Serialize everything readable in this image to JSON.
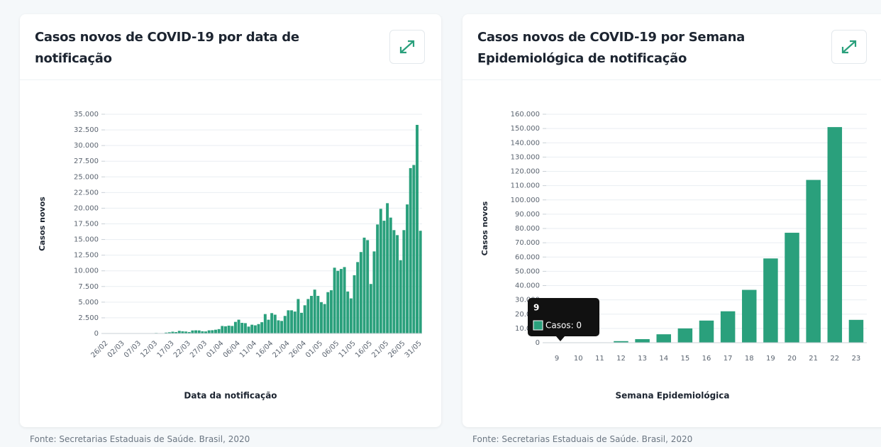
{
  "chart_data": [
    {
      "type": "bar",
      "title": "Casos novos de COVID-19 por data de notificação",
      "xlabel": "Data da notificação",
      "ylabel": "Casos novos",
      "source": "Fonte: Secretarias Estaduais de Saúde. Brasil, 2020",
      "color": "#2aa07c",
      "grid": true,
      "categories": [
        "26/02",
        null,
        null,
        null,
        null,
        "02/03",
        null,
        null,
        null,
        null,
        "07/03",
        null,
        null,
        null,
        null,
        "12/03",
        null,
        null,
        null,
        null,
        "17/03",
        null,
        null,
        null,
        null,
        "22/03",
        null,
        null,
        null,
        null,
        "27/03",
        null,
        null,
        null,
        null,
        "01/04",
        null,
        null,
        null,
        null,
        "06/04",
        null,
        null,
        null,
        null,
        "11/04",
        null,
        null,
        null,
        null,
        "16/04",
        null,
        null,
        null,
        null,
        "21/04",
        null,
        null,
        null,
        null,
        "26/04",
        null,
        null,
        null,
        null,
        "01/05",
        null,
        null,
        null,
        null,
        "06/05",
        null,
        null,
        null,
        null,
        "11/05",
        null,
        null,
        null,
        null,
        "16/05",
        null,
        null,
        null,
        null,
        "21/05",
        null,
        null,
        null,
        null,
        "26/05",
        null,
        null,
        null,
        null,
        "31/05"
      ],
      "values": [
        1,
        0,
        0,
        1,
        0,
        1,
        0,
        0,
        5,
        4,
        6,
        6,
        25,
        21,
        23,
        79,
        34,
        57,
        137,
        193,
        283,
        224,
        418,
        345,
        310,
        232,
        482,
        502,
        487,
        352,
        323,
        500,
        520,
        600,
        700,
        1200,
        1150,
        1250,
        1200,
        1850,
        2200,
        1700,
        1650,
        1100,
        1400,
        1300,
        1500,
        1800,
        3100,
        2200,
        3250,
        3000,
        2100,
        2000,
        2800,
        3700,
        3700,
        3500,
        5500,
        3300,
        4500,
        5500,
        6000,
        7000,
        6000,
        5000,
        4700,
        6600,
        6900,
        10500,
        10000,
        10300,
        10600,
        6700,
        5600,
        9300,
        11400,
        13000,
        15300,
        14900,
        7900,
        13100,
        17400,
        19900,
        18000,
        20800,
        18500,
        16500,
        15700,
        11700,
        16500,
        20600,
        26400,
        26900,
        33300,
        16400
      ],
      "ylim": [
        0,
        35000
      ],
      "yticks": [
        0,
        {
          "value": 2500,
          "label": "2.500"
        },
        {
          "value": 5000,
          "label": "5.000"
        },
        {
          "value": 7500,
          "label": "7.500"
        },
        {
          "value": 10000,
          "label": "10.000"
        },
        {
          "value": 12500,
          "label": "12.500"
        },
        {
          "value": 15000,
          "label": "15.000"
        },
        {
          "value": 17500,
          "label": "17.500"
        },
        {
          "value": 20000,
          "label": "20.000"
        },
        {
          "value": 22500,
          "label": "22.500"
        },
        {
          "value": 25000,
          "label": "25.000"
        },
        {
          "value": 27500,
          "label": "27.500"
        },
        {
          "value": 30000,
          "label": "30.000"
        },
        {
          "value": 32500,
          "label": "32.500"
        },
        {
          "value": 35000,
          "label": "35.000"
        }
      ]
    },
    {
      "type": "bar",
      "title": "Casos novos de COVID-19 por Semana Epidemiológica de notificação",
      "xlabel": "Semana Epidemiológica",
      "ylabel": "Casos novos",
      "source": "Fonte: Secretarias Estaduais de Saúde. Brasil, 2020",
      "color": "#2aa07c",
      "grid": true,
      "categories": [
        "9",
        "10",
        "11",
        "12",
        "13",
        "14",
        "15",
        "16",
        "17",
        "18",
        "19",
        "20",
        "21",
        "22",
        "23"
      ],
      "values": [
        0,
        30,
        250,
        1100,
        2500,
        5900,
        10000,
        15500,
        22000,
        37000,
        59000,
        77000,
        114000,
        151000,
        16000
      ],
      "ylim": [
        0,
        160000
      ],
      "yticks": [
        0,
        {
          "value": 10000,
          "label": "10.000"
        },
        {
          "value": 20000,
          "label": "20.000"
        },
        {
          "value": 30000,
          "label": "30.000"
        },
        {
          "value": 40000,
          "label": "40.000"
        },
        {
          "value": 50000,
          "label": "50.000"
        },
        {
          "value": 60000,
          "label": "60.000"
        },
        {
          "value": 70000,
          "label": "70.000"
        },
        {
          "value": 80000,
          "label": "80.000"
        },
        {
          "value": 90000,
          "label": "90.000"
        },
        {
          "value": 100000,
          "label": "100.000"
        },
        {
          "value": 110000,
          "label": "110.000"
        },
        {
          "value": 120000,
          "label": "120.000"
        },
        {
          "value": 130000,
          "label": "130.000"
        },
        {
          "value": 140000,
          "label": "140.000"
        },
        {
          "value": 150000,
          "label": "150.000"
        },
        {
          "value": 160000,
          "label": "160.000"
        }
      ],
      "tooltip": {
        "title": "9",
        "label": "Casos: 0"
      }
    }
  ]
}
